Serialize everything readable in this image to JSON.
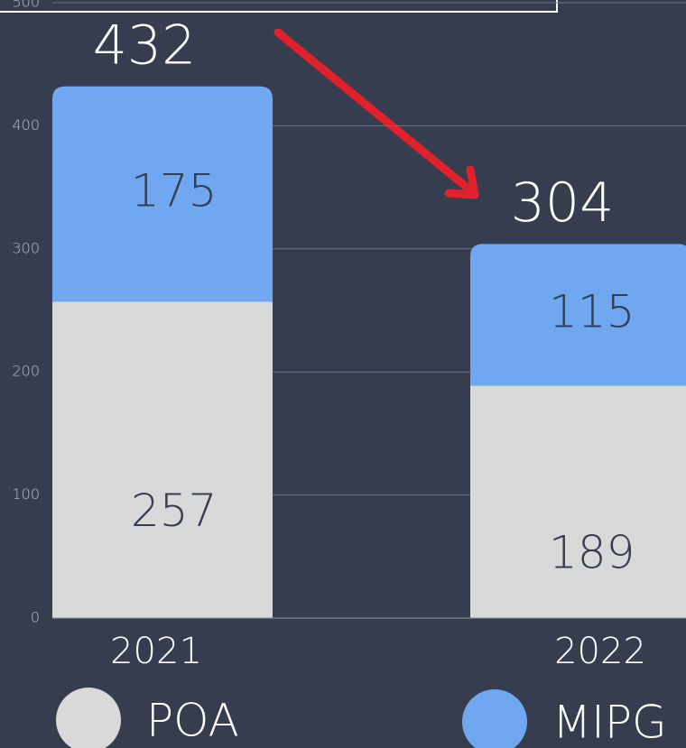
{
  "chart_data": {
    "type": "stacked_bar",
    "categories": [
      "2021",
      "2022"
    ],
    "series": [
      {
        "name": "POA",
        "color": "#d9d9d9",
        "values": [
          257,
          189
        ]
      },
      {
        "name": "MIPG",
        "color": "#6fa8f0",
        "values": [
          175,
          115
        ]
      }
    ],
    "totals": [
      432,
      304
    ],
    "ylim": [
      0,
      500
    ],
    "yticks": [
      0,
      100,
      200,
      300,
      400,
      500
    ],
    "grid": true
  }
}
